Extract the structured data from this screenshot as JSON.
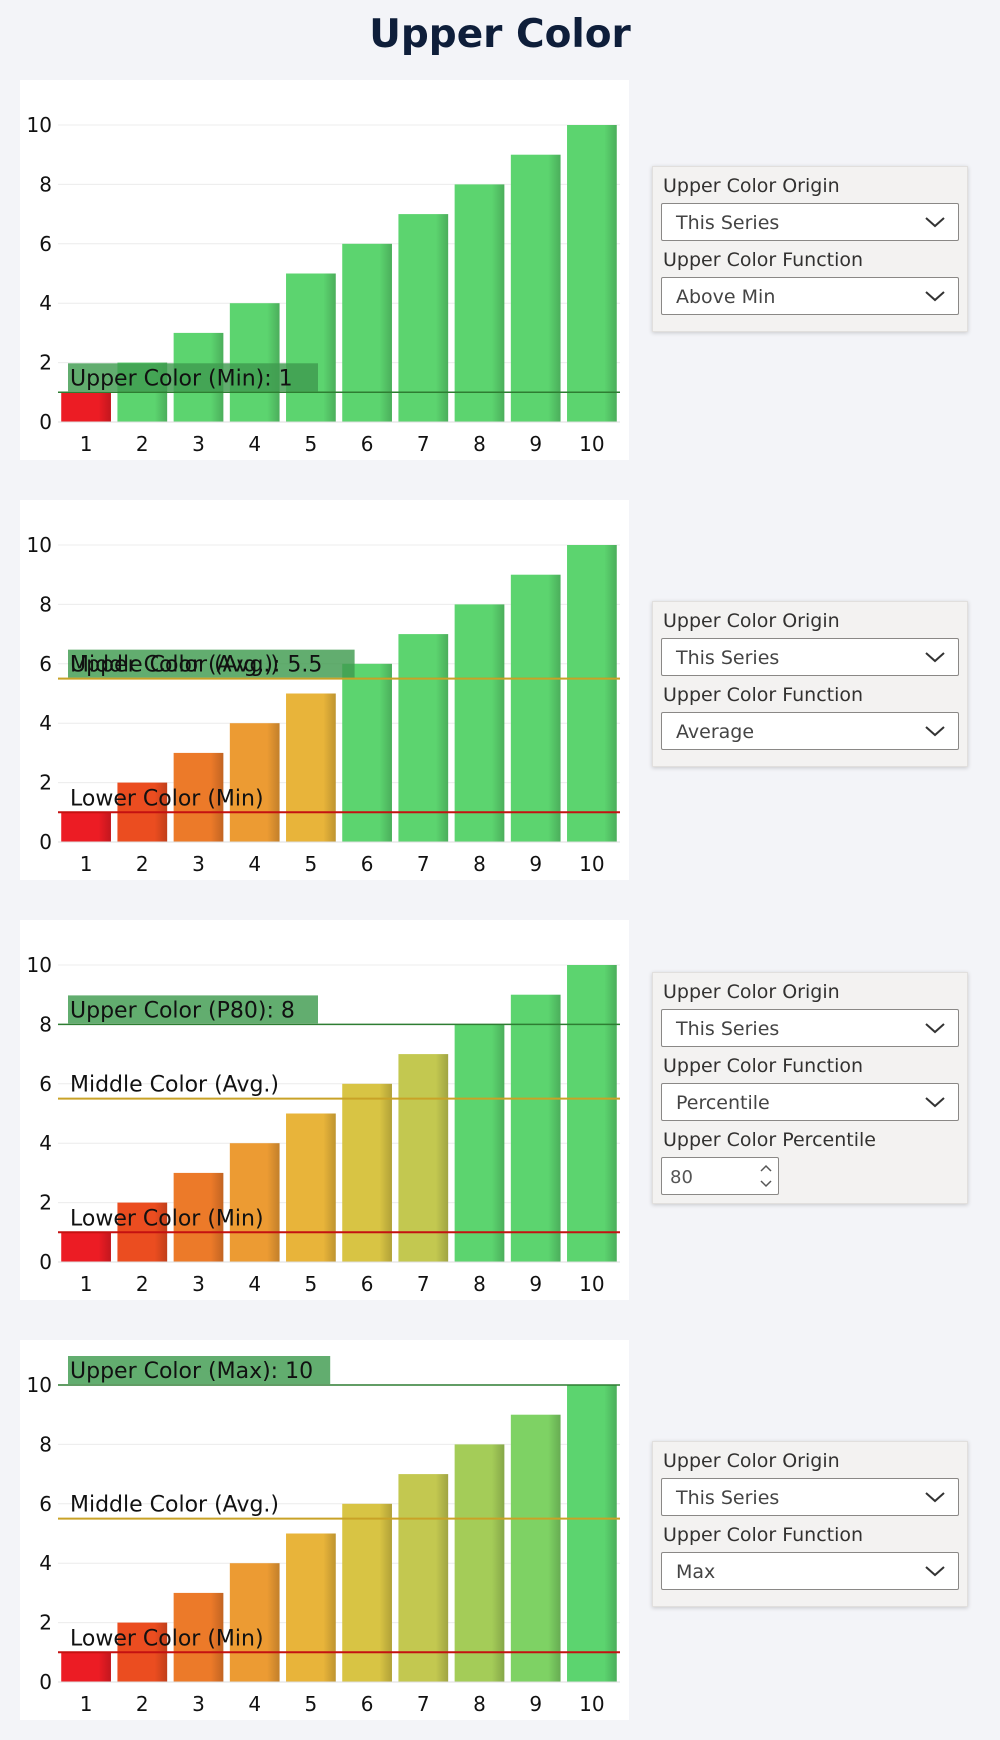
{
  "page": {
    "title": "Upper Color"
  },
  "palette": {
    "upper_green": "#5cd46f",
    "upper_label_bg": "#3f9b4f",
    "lower_line": "#c41111",
    "middle_line": "#c9a227",
    "grid": "#ececec",
    "bar_gradient": [
      "#ec1c24",
      "#eb4d20",
      "#ec7a29",
      "#ec9b33",
      "#e8b43a",
      "#d8c444",
      "#c3c850",
      "#a4cc58",
      "#7ed264",
      "#5cd46f"
    ]
  },
  "panels": [
    {
      "origin_label": "Upper Color Origin",
      "origin_value": "This Series",
      "function_label": "Upper Color Function",
      "function_value": "Above Min"
    },
    {
      "origin_label": "Upper Color Origin",
      "origin_value": "This Series",
      "function_label": "Upper Color Function",
      "function_value": "Average"
    },
    {
      "origin_label": "Upper Color Origin",
      "origin_value": "This Series",
      "function_label": "Upper Color Function",
      "function_value": "Percentile",
      "percentile_label": "Upper Color Percentile",
      "percentile_value": "80"
    },
    {
      "origin_label": "Upper Color Origin",
      "origin_value": "This Series",
      "function_label": "Upper Color Function",
      "function_value": "Max"
    }
  ],
  "chart_data": [
    {
      "type": "bar",
      "categories": [
        "1",
        "2",
        "3",
        "4",
        "5",
        "6",
        "7",
        "8",
        "9",
        "10"
      ],
      "values": [
        1,
        2,
        3,
        4,
        5,
        6,
        7,
        8,
        9,
        10
      ],
      "ylim": [
        0,
        10
      ],
      "yticks": [
        0,
        2,
        4,
        6,
        8,
        10
      ],
      "bar_colors": [
        "red",
        "green",
        "green",
        "green",
        "green",
        "green",
        "green",
        "green",
        "green",
        "green"
      ],
      "reference_lines": [
        {
          "kind": "upper",
          "value": 1,
          "label": "Upper Color (Min): 1"
        }
      ]
    },
    {
      "type": "bar",
      "categories": [
        "1",
        "2",
        "3",
        "4",
        "5",
        "6",
        "7",
        "8",
        "9",
        "10"
      ],
      "values": [
        1,
        2,
        3,
        4,
        5,
        6,
        7,
        8,
        9,
        10
      ],
      "ylim": [
        0,
        10
      ],
      "yticks": [
        0,
        2,
        4,
        6,
        8,
        10
      ],
      "bar_colors": [
        "gradient",
        "gradient",
        "gradient",
        "gradient",
        "gradient",
        "green",
        "green",
        "green",
        "green",
        "green"
      ],
      "reference_lines": [
        {
          "kind": "upper",
          "value": 5.5,
          "label": "Upper Color (Avg.): 5.5"
        },
        {
          "kind": "middle",
          "value": 5.5,
          "label": "Middle Color (Avg.)"
        },
        {
          "kind": "lower",
          "value": 1,
          "label": "Lower Color (Min)"
        }
      ]
    },
    {
      "type": "bar",
      "categories": [
        "1",
        "2",
        "3",
        "4",
        "5",
        "6",
        "7",
        "8",
        "9",
        "10"
      ],
      "values": [
        1,
        2,
        3,
        4,
        5,
        6,
        7,
        8,
        9,
        10
      ],
      "ylim": [
        0,
        10
      ],
      "yticks": [
        0,
        2,
        4,
        6,
        8,
        10
      ],
      "bar_colors": [
        "gradient",
        "gradient",
        "gradient",
        "gradient",
        "gradient",
        "gradient",
        "gradient",
        "green",
        "green",
        "green"
      ],
      "reference_lines": [
        {
          "kind": "upper",
          "value": 8,
          "label": "Upper Color (P80): 8"
        },
        {
          "kind": "middle",
          "value": 5.5,
          "label": "Middle Color (Avg.)"
        },
        {
          "kind": "lower",
          "value": 1,
          "label": "Lower Color (Min)"
        }
      ]
    },
    {
      "type": "bar",
      "categories": [
        "1",
        "2",
        "3",
        "4",
        "5",
        "6",
        "7",
        "8",
        "9",
        "10"
      ],
      "values": [
        1,
        2,
        3,
        4,
        5,
        6,
        7,
        8,
        9,
        10
      ],
      "ylim": [
        0,
        10
      ],
      "yticks": [
        0,
        2,
        4,
        6,
        8,
        10
      ],
      "bar_colors": [
        "gradient",
        "gradient",
        "gradient",
        "gradient",
        "gradient",
        "gradient",
        "gradient",
        "gradient",
        "gradient",
        "green"
      ],
      "reference_lines": [
        {
          "kind": "upper",
          "value": 10,
          "label": "Upper Color (Max): 10"
        },
        {
          "kind": "middle",
          "value": 5.5,
          "label": "Middle Color (Avg.)"
        },
        {
          "kind": "lower",
          "value": 1,
          "label": "Lower Color (Min)"
        }
      ]
    }
  ]
}
